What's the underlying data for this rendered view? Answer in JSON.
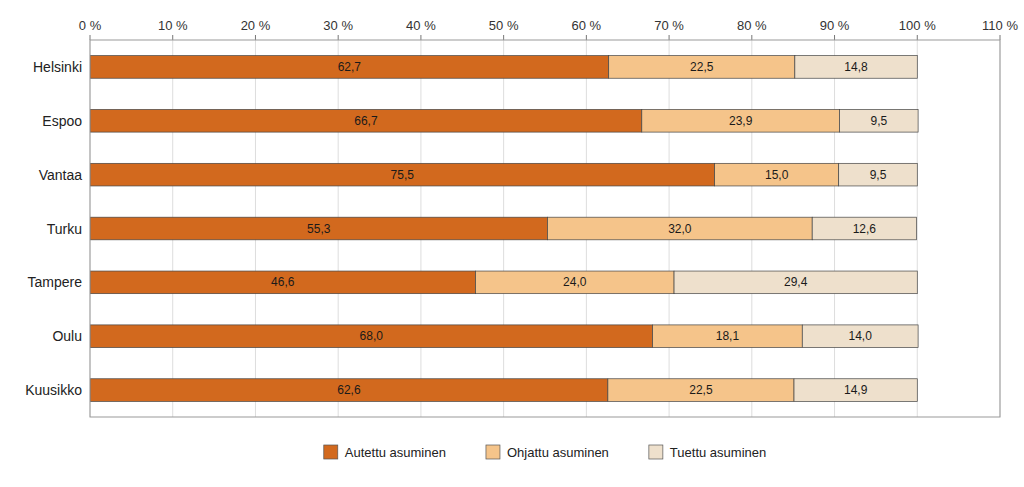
{
  "chart_data": {
    "type": "bar",
    "orientation": "horizontal",
    "stacked": true,
    "data_labels": true,
    "grid": true,
    "legend": "bottom",
    "categories": [
      "Helsinki",
      "Espoo",
      "Vantaa",
      "Turku",
      "Tampere",
      "Oulu",
      "Kuusikko"
    ],
    "series": [
      {
        "name": "Autettu asuminen",
        "color": "#D2691E",
        "values": [
          62.7,
          66.7,
          75.5,
          55.3,
          46.6,
          68.0,
          62.6
        ],
        "value_labels": [
          "62,7",
          "66,7",
          "75,5",
          "55,3",
          "46,6",
          "68,0",
          "62,6"
        ]
      },
      {
        "name": "Ohjattu asuminen",
        "color": "#F5C48A",
        "values": [
          22.5,
          23.9,
          15.0,
          32.0,
          24.0,
          18.1,
          22.5
        ],
        "value_labels": [
          "22,5",
          "23,9",
          "15,0",
          "32,0",
          "24,0",
          "18,1",
          "22,5"
        ]
      },
      {
        "name": "Tuettu asuminen",
        "color": "#EEE0CC",
        "values": [
          14.8,
          9.5,
          9.5,
          12.6,
          29.4,
          14.0,
          14.9
        ],
        "value_labels": [
          "14,8",
          "9,5",
          "9,5",
          "12,6",
          "29,4",
          "14,0",
          "14,9"
        ]
      }
    ],
    "xlim": [
      0,
      110
    ],
    "xticks": [
      {
        "value": 0,
        "label": "0 %"
      },
      {
        "value": 10,
        "label": "10 %"
      },
      {
        "value": 20,
        "label": "20 %"
      },
      {
        "value": 30,
        "label": "30 %"
      },
      {
        "value": 40,
        "label": "40 %"
      },
      {
        "value": 50,
        "label": "50 %"
      },
      {
        "value": 60,
        "label": "60 %"
      },
      {
        "value": 70,
        "label": "70 %"
      },
      {
        "value": 80,
        "label": "80 %"
      },
      {
        "value": 90,
        "label": "90 %"
      },
      {
        "value": 100,
        "label": "100 %"
      },
      {
        "value": 110,
        "label": "110 %"
      }
    ]
  }
}
